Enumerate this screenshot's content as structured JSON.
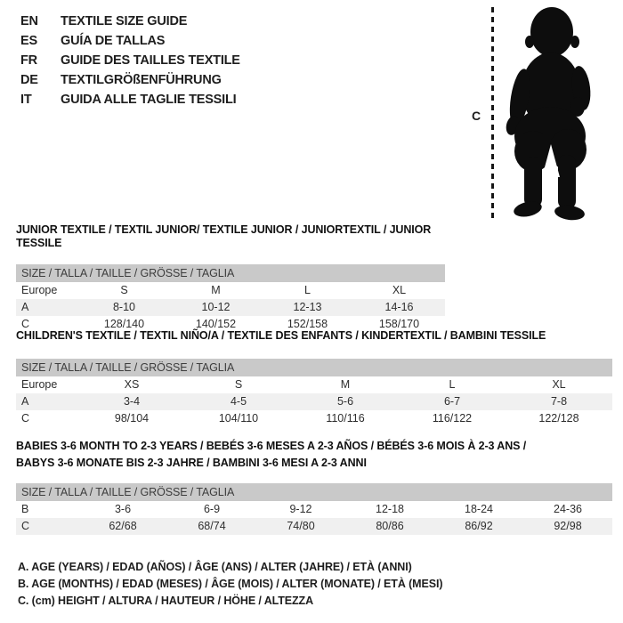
{
  "colors": {
    "text": "#1e1e1e",
    "table_text": "#2e2e2e",
    "header_bar_bg": "#c9c9c9",
    "header_bar_text": "#3d3d3d",
    "shaded_row_bg": "#f0f0f0",
    "silhouette": "#0d0d0d"
  },
  "language_guide": {
    "items": [
      {
        "code": "EN",
        "label": "TEXTILE SIZE GUIDE"
      },
      {
        "code": "ES",
        "label": "GUÍA DE TALLAS"
      },
      {
        "code": "FR",
        "label": "GUIDE DES TAILLES TEXTILE"
      },
      {
        "code": "DE",
        "label": "TEXTILGRÖßENFÜHRUNG"
      },
      {
        "code": "IT",
        "label": "GUIDA ALLE TAGLIE TESSILI"
      }
    ]
  },
  "figure": {
    "measure_label": "C",
    "description": "toddler silhouette with dashed height line"
  },
  "tables": [
    {
      "title_lines": [
        "JUNIOR TEXTILE / TEXTIL JUNIOR/ TEXTILE JUNIOR / JUNIORTEXTIL / JUNIOR TESSILE"
      ],
      "header": "SIZE / TALLA / TAILLE / GRÖSSE / TAGLIA",
      "rows": [
        {
          "label": "Europe",
          "cells": [
            "S",
            "M",
            "L",
            "XL"
          ],
          "shaded": false
        },
        {
          "label": "A",
          "cells": [
            "8-10",
            "10-12",
            "12-13",
            "14-16"
          ],
          "shaded": true
        },
        {
          "label": "C",
          "cells": [
            "128/140",
            "140/152",
            "152/158",
            "158/170"
          ],
          "shaded": false
        }
      ]
    },
    {
      "title_lines": [
        "CHILDREN'S TEXTILE / TEXTIL NIÑO/A / TEXTILE DES ENFANTS / KINDERTEXTIL / BAMBINI TESSILE"
      ],
      "header": "SIZE / TALLA / TAILLE / GRÖSSE / TAGLIA",
      "rows": [
        {
          "label": "Europe",
          "cells": [
            "XS",
            "S",
            "M",
            "L",
            "XL"
          ],
          "shaded": false
        },
        {
          "label": "A",
          "cells": [
            "3-4",
            "4-5",
            "5-6",
            "6-7",
            "7-8"
          ],
          "shaded": true
        },
        {
          "label": "C",
          "cells": [
            "98/104",
            "104/110",
            "110/116",
            "116/122",
            "122/128"
          ],
          "shaded": false
        }
      ]
    },
    {
      "title_lines": [
        "BABIES 3-6 MONTH TO 2-3 YEARS / BEBÉS 3-6 MESES A 2-3 AÑOS / BÉBÉS 3-6 MOIS À 2-3 ANS /",
        "BABYS 3-6 MONATE BIS 2-3 JAHRE / BAMBINI 3-6 MESI A 2-3 ANNI"
      ],
      "header": "SIZE / TALLA / TAILLE / GRÖSSE / TAGLIA",
      "rows": [
        {
          "label": "B",
          "cells": [
            "3-6",
            "6-9",
            "9-12",
            "12-18",
            "18-24",
            "24-36"
          ],
          "shaded": false
        },
        {
          "label": "C",
          "cells": [
            "62/68",
            "68/74",
            "74/80",
            "80/86",
            "86/92",
            "92/98"
          ],
          "shaded": true
        }
      ]
    }
  ],
  "footnotes": [
    "A. AGE (YEARS) / EDAD (AÑOS) / ÂGE (ANS) / ALTER (JAHRE) / ETÀ (ANNI)",
    "B. AGE (MONTHS) / EDAD (MESES) / ÂGE (MOIS) / ALTER (MONATE) / ETÀ (MESI)",
    "C. (cm) HEIGHT / ALTURA / HAUTEUR / HÖHE / ALTEZZA"
  ]
}
